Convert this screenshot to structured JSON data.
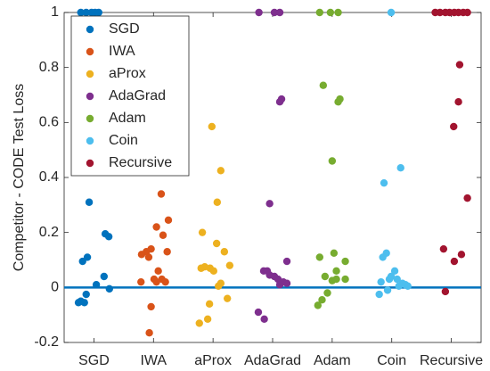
{
  "chart_data": {
    "type": "scatter",
    "ylabel": "Competitor - CODE Test Loss",
    "xlim": [
      0.5,
      7.5
    ],
    "xticks": [
      {
        "value": 1,
        "label": "SGD"
      },
      {
        "value": 2,
        "label": "IWA"
      },
      {
        "value": 3,
        "label": "aProx"
      },
      {
        "value": 4,
        "label": "AdaGrad"
      },
      {
        "value": 5,
        "label": "Adam"
      },
      {
        "value": 6,
        "label": "Coin"
      },
      {
        "value": 7,
        "label": "Recursive"
      }
    ],
    "ylim": [
      -0.2,
      1
    ],
    "yticks": [
      -0.2,
      0,
      0.2,
      0.4,
      0.6,
      0.8,
      1
    ],
    "reference_line": {
      "value": 0,
      "color": "#0072BD"
    },
    "legend": "upper left",
    "series": [
      {
        "name": "SGD",
        "color": "#0072BD",
        "x": [
          0.78,
          0.87,
          0.96,
          1.02,
          1.08,
          0.92,
          0.81,
          0.89,
          1.19,
          1.25,
          1.04,
          1.17,
          1.26,
          0.87,
          0.78,
          0.84,
          0.74
        ],
        "values": [
          1,
          1,
          1,
          1,
          1,
          0.31,
          0.095,
          0.11,
          0.195,
          0.185,
          0.01,
          0.04,
          -0.005,
          -0.025,
          -0.05,
          -0.055,
          -0.055
        ]
      },
      {
        "name": "IWA",
        "color": "#D95319",
        "x": [
          2.13,
          2.05,
          2.25,
          1.96,
          1.88,
          1.8,
          1.92,
          2.16,
          2.23,
          2.08,
          2.14,
          2.2,
          2.05,
          1.79,
          1.96,
          1.93,
          2.01
        ],
        "values": [
          0.34,
          0.22,
          0.245,
          0.14,
          0.13,
          0.12,
          0.11,
          0.19,
          0.13,
          0.06,
          0.03,
          0.02,
          0.02,
          0.02,
          -0.07,
          -0.165,
          0.03
        ]
      },
      {
        "name": "aProx",
        "color": "#EDB120",
        "x": [
          2.98,
          3.13,
          3.07,
          2.82,
          3.06,
          3.19,
          2.86,
          2.95,
          3.01,
          3.28,
          2.8,
          3.13,
          3.24,
          2.94,
          2.91,
          2.77,
          3.09
        ],
        "values": [
          0.585,
          0.425,
          0.31,
          0.2,
          0.16,
          0.13,
          0.075,
          0.07,
          0.06,
          0.08,
          0.07,
          0.015,
          -0.04,
          -0.06,
          -0.115,
          -0.13,
          0.005
        ]
      },
      {
        "name": "AdaGrad",
        "color": "#7E2F8E",
        "x": [
          3.77,
          4.03,
          4.12,
          4.15,
          4.12,
          3.95,
          4.24,
          3.85,
          3.91,
          3.95,
          4.03,
          4.09,
          4.18,
          4.24,
          4.12,
          3.76,
          3.86
        ],
        "values": [
          1,
          1,
          1,
          0.685,
          0.675,
          0.305,
          0.095,
          0.06,
          0.06,
          0.045,
          0.04,
          0.03,
          0.02,
          0.015,
          0.01,
          -0.09,
          -0.115
        ]
      },
      {
        "name": "Adam",
        "color": "#77AC30",
        "x": [
          4.79,
          4.97,
          5.1,
          4.85,
          5.13,
          5.1,
          5.0,
          5.03,
          4.79,
          5.22,
          5.07,
          4.88,
          5.07,
          5.0,
          5.22,
          4.92,
          4.83,
          4.76
        ],
        "values": [
          1,
          1,
          1,
          0.735,
          0.685,
          0.675,
          0.46,
          0.125,
          0.11,
          0.095,
          0.06,
          0.04,
          0.03,
          0.025,
          0.03,
          -0.02,
          -0.045,
          -0.065
        ]
      },
      {
        "name": "Coin",
        "color": "#4DBEEE",
        "x": [
          5.99,
          6.15,
          5.87,
          5.91,
          5.85,
          6.05,
          5.99,
          6.09,
          6.18,
          5.96,
          5.82,
          6.23,
          6.27,
          6.12,
          5.79,
          5.93
        ],
        "values": [
          1,
          0.435,
          0.38,
          0.125,
          0.11,
          0.06,
          0.04,
          0.03,
          0.015,
          0.03,
          0.02,
          0.01,
          0.005,
          0.005,
          -0.025,
          -0.01
        ]
      },
      {
        "name": "Recursive",
        "color": "#A2142F",
        "x": [
          6.73,
          6.81,
          6.9,
          6.97,
          7.05,
          7.12,
          7.2,
          7.27,
          7.14,
          7.12,
          7.04,
          7.27,
          6.87,
          7.17,
          7.05,
          6.9
        ],
        "values": [
          1,
          1,
          1,
          1,
          1,
          1,
          1,
          1,
          0.81,
          0.675,
          0.585,
          0.325,
          0.14,
          0.12,
          0.095,
          -0.015
        ]
      }
    ]
  }
}
